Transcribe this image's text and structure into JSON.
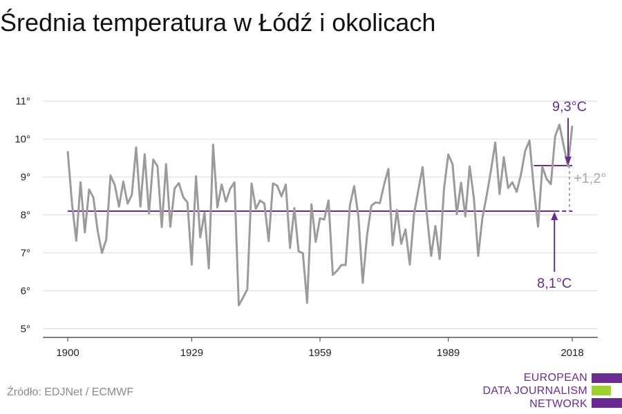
{
  "title": "Średnia temperatura w Łódź i okolicach",
  "source": "Źródło: EDJNet / ECMWF",
  "logo": {
    "lines": [
      "EUROPEAN",
      "DATA JOURNALISM",
      "NETWORK"
    ],
    "colors": [
      "#6a2c91",
      "#9cd12f",
      "#6a2c91"
    ]
  },
  "colors": {
    "line": "#9b9b9b",
    "accent": "#6a2c91",
    "grid": "#dddddd",
    "diff": "#a8a8a8"
  },
  "chart_data": {
    "type": "line",
    "x": [
      1900,
      1901,
      1902,
      1903,
      1904,
      1905,
      1906,
      1907,
      1908,
      1909,
      1910,
      1911,
      1912,
      1913,
      1914,
      1915,
      1916,
      1917,
      1918,
      1919,
      1920,
      1921,
      1922,
      1923,
      1924,
      1925,
      1926,
      1927,
      1928,
      1929,
      1930,
      1931,
      1932,
      1933,
      1934,
      1935,
      1936,
      1937,
      1938,
      1939,
      1940,
      1941,
      1942,
      1943,
      1944,
      1945,
      1946,
      1947,
      1948,
      1949,
      1950,
      1951,
      1952,
      1953,
      1954,
      1955,
      1956,
      1957,
      1958,
      1959,
      1960,
      1961,
      1962,
      1963,
      1964,
      1965,
      1966,
      1967,
      1968,
      1969,
      1970,
      1971,
      1972,
      1973,
      1974,
      1975,
      1976,
      1977,
      1978,
      1979,
      1980,
      1981,
      1982,
      1983,
      1984,
      1985,
      1986,
      1987,
      1988,
      1989,
      1990,
      1991,
      1992,
      1993,
      1994,
      1995,
      1996,
      1997,
      1998,
      1999,
      2000,
      2001,
      2002,
      2003,
      2004,
      2005,
      2006,
      2007,
      2008,
      2009,
      2010,
      2011,
      2012,
      2013,
      2014,
      2015,
      2016,
      2017,
      2018
    ],
    "series": [
      {
        "values": [
          9.68,
          8.3,
          7.32,
          8.86,
          7.54,
          8.67,
          8.46,
          7.58,
          7.0,
          7.35,
          9.04,
          8.79,
          8.22,
          8.88,
          8.3,
          8.53,
          9.78,
          8.22,
          9.6,
          8.04,
          9.46,
          9.28,
          7.68,
          9.34,
          7.69,
          8.7,
          8.84,
          8.47,
          8.33,
          6.69,
          9.02,
          7.41,
          8.06,
          6.59,
          9.85,
          8.2,
          8.8,
          8.35,
          8.69,
          8.86,
          5.62,
          5.82,
          6.04,
          8.83,
          8.16,
          8.38,
          8.3,
          7.31,
          8.83,
          8.77,
          8.49,
          8.8,
          7.13,
          8.18,
          7.04,
          6.99,
          5.68,
          8.28,
          7.29,
          7.91,
          7.88,
          8.38,
          6.42,
          6.53,
          6.68,
          6.68,
          8.26,
          8.76,
          7.94,
          6.21,
          7.45,
          8.24,
          8.33,
          8.31,
          8.8,
          9.21,
          7.2,
          8.13,
          7.24,
          7.62,
          6.69,
          8.03,
          8.65,
          9.26,
          8.01,
          6.92,
          7.71,
          6.84,
          8.68,
          9.59,
          9.34,
          8.02,
          8.85,
          7.96,
          9.28,
          8.44,
          6.92,
          7.93,
          8.52,
          9.18,
          9.91,
          8.55,
          9.52,
          8.71,
          8.86,
          8.61,
          9.06,
          9.69,
          9.96,
          8.72,
          7.69,
          9.27,
          8.95,
          8.81,
          10.07,
          10.38,
          9.82,
          9.28,
          10.35
        ]
      }
    ],
    "xticks": [
      1900,
      1929,
      1959,
      1989,
      2018
    ],
    "yticks": [
      5,
      6,
      7,
      8,
      9,
      10,
      11
    ],
    "ytick_labels": [
      "5°",
      "6°",
      "7°",
      "8°",
      "9°",
      "10°",
      "11°"
    ],
    "ylim": [
      4.8,
      11.3
    ],
    "xlim": [
      1900,
      2018
    ],
    "grid": true,
    "reference_lines": [
      {
        "label": "8,1°C",
        "value": 8.1,
        "from": 1900,
        "to": 2018,
        "solid_until": 2014
      },
      {
        "label": "9,3°C",
        "value": 9.3,
        "from": 2009,
        "to": 2018
      }
    ],
    "difference_label": "+1,2°"
  }
}
